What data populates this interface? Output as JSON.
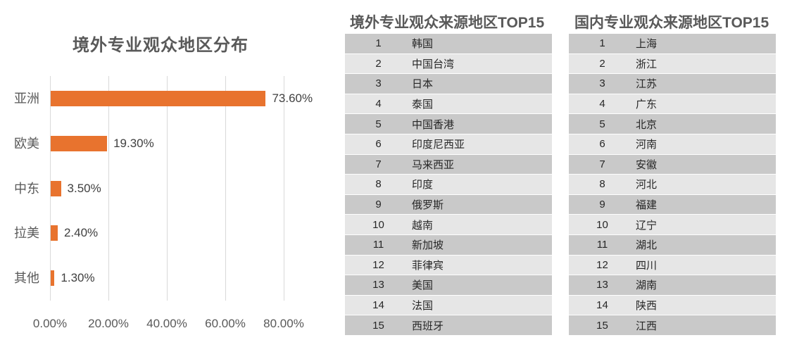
{
  "chart_data": {
    "type": "bar",
    "orientation": "horizontal",
    "title": "境外专业观众地区分布",
    "categories": [
      "亚洲",
      "欧美",
      "中东",
      "拉美",
      "其他"
    ],
    "values": [
      73.6,
      19.3,
      3.5,
      2.4,
      1.3
    ],
    "data_labels": [
      "73.60%",
      "19.30%",
      "3.50%",
      "2.40%",
      "1.30%"
    ],
    "x_tick_labels": [
      "0.00%",
      "20.00%",
      "40.00%",
      "60.00%",
      "80.00%"
    ],
    "xlim": [
      0,
      80
    ],
    "grid": true,
    "legend": "none",
    "bar_color": "#e8732e"
  },
  "colors": {
    "accent_orange": "#e8732e",
    "gridline": "#d9d9d9",
    "title_gray": "#595959",
    "row_odd": "#c9c9c9",
    "row_even": "#e6e6e6",
    "cell_text": "#262626"
  },
  "tables": {
    "overseas": {
      "title": "境外专业观众来源地区TOP15",
      "rows": [
        {
          "rank": "1",
          "name": "韩国"
        },
        {
          "rank": "2",
          "name": "中国台湾"
        },
        {
          "rank": "3",
          "name": "日本"
        },
        {
          "rank": "4",
          "name": "泰国"
        },
        {
          "rank": "5",
          "name": "中国香港"
        },
        {
          "rank": "6",
          "name": "印度尼西亚"
        },
        {
          "rank": "7",
          "name": "马来西亚"
        },
        {
          "rank": "8",
          "name": "印度"
        },
        {
          "rank": "9",
          "name": "俄罗斯"
        },
        {
          "rank": "10",
          "name": "越南"
        },
        {
          "rank": "11",
          "name": "新加坡"
        },
        {
          "rank": "12",
          "name": "菲律宾"
        },
        {
          "rank": "13",
          "name": "美国"
        },
        {
          "rank": "14",
          "name": "法国"
        },
        {
          "rank": "15",
          "name": "西班牙"
        }
      ]
    },
    "domestic": {
      "title": "国内专业观众来源地区TOP15",
      "rows": [
        {
          "rank": "1",
          "name": "上海"
        },
        {
          "rank": "2",
          "name": "浙江"
        },
        {
          "rank": "3",
          "name": "江苏"
        },
        {
          "rank": "4",
          "name": "广东"
        },
        {
          "rank": "5",
          "name": "北京"
        },
        {
          "rank": "6",
          "name": "河南"
        },
        {
          "rank": "7",
          "name": "安徽"
        },
        {
          "rank": "8",
          "name": "河北"
        },
        {
          "rank": "9",
          "name": "福建"
        },
        {
          "rank": "10",
          "name": "辽宁"
        },
        {
          "rank": "11",
          "name": "湖北"
        },
        {
          "rank": "12",
          "name": "四川"
        },
        {
          "rank": "13",
          "name": "湖南"
        },
        {
          "rank": "14",
          "name": "陕西"
        },
        {
          "rank": "15",
          "name": "江西"
        }
      ]
    }
  }
}
